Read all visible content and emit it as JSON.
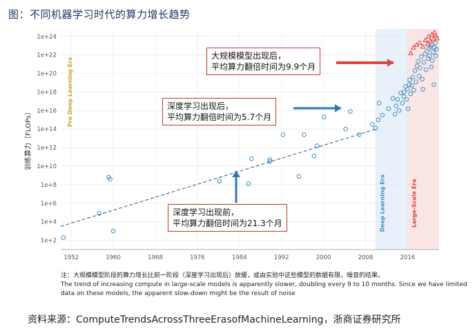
{
  "page": {
    "title_prefix": "图：",
    "title": "不同机器学习时代的算力增长趋势",
    "note_line1": "注：大规模模型阶段的算力增长比前一阶段（深度学习出现后）放缓，或由实验中这些模型的数据有限，噪音的结果。",
    "note_line2": "The trend of increasing compute in large-scale models is apparently slower, doubling every 9 to 10 months. Since we have limited data on these models, the apparent slow-down might be the result of noise",
    "source": "资料来源：ComputeTrendsAcrossThreeErasofMachineLearning，浙商证券研究所"
  },
  "annotations": {
    "large_scale_1": "大规模模型出现后，",
    "large_scale_2": "平均算力翻倍时间为9.9个月",
    "deep_1": "深度学习出现后，",
    "deep_2": "平均算力翻倍时间为5.7个月",
    "pre_1": "深度学习出现前，",
    "pre_2": "平均算力翻倍时间为21.3个月"
  },
  "colors": {
    "pre_era_bg": "#ffffff",
    "deep_era_bg": "#e8f1fa",
    "large_era_bg": "#fbe6e6",
    "circle": "#3b8fc4",
    "triangle": "#d9403a",
    "trend": "#2c4f8f",
    "blue_arrow": "#2e75b6",
    "red_arrow": "#e0453a",
    "era_pre_label": "#c9a227",
    "era_deep_label": "#3b8fc4",
    "era_large_label": "#d9403a"
  },
  "chart_data": {
    "type": "scatter",
    "title": "",
    "xlabel": "",
    "ylabel": "训练算力（FLOPs）",
    "xlim": [
      1950,
      2022
    ],
    "ylim_log10": [
      1,
      24.8
    ],
    "x_ticks": [
      "1952",
      "1960",
      "1968",
      "1976",
      "1984",
      "1992",
      "2000",
      "2008",
      "2016"
    ],
    "y_ticks": [
      "1e+2",
      "1e+4",
      "1e+6",
      "1e+8",
      "1e+10",
      "1e+12",
      "1e+14",
      "1e+16",
      "1e+18",
      "1e+20",
      "1e+22",
      "1e+24"
    ],
    "eras": [
      {
        "name": "Pre Deep Learning Era",
        "start": 1950,
        "end": 2010
      },
      {
        "name": "Deep Learning Era",
        "start": 2010,
        "end": 2016
      },
      {
        "name": "Large-Scale Era",
        "start": 2016,
        "end": 2022
      }
    ],
    "trend_line": {
      "x": [
        1950,
        2010
      ],
      "log10_y": [
        3.5,
        14
      ]
    },
    "series": [
      {
        "marker": "circle",
        "points": [
          [
            1950.5,
            2.3
          ],
          [
            1957.3,
            4.9
          ],
          [
            1959.1,
            8.8
          ],
          [
            1959.4,
            8.6
          ],
          [
            1960,
            3
          ],
          [
            1980.2,
            8.4
          ],
          [
            1985.7,
            8.1
          ],
          [
            1986.3,
            10.8
          ],
          [
            1989.8,
            10.7
          ],
          [
            1989.8,
            10.5
          ],
          [
            1992.3,
            13.4
          ],
          [
            1995.3,
            8.9
          ],
          [
            1996.3,
            13.4
          ],
          [
            1998.2,
            11.1
          ],
          [
            1998.8,
            12.2
          ],
          [
            2000.1,
            15.3
          ],
          [
            2004.2,
            14
          ],
          [
            2005.1,
            15.9
          ],
          [
            2006.8,
            13.4
          ],
          [
            2009.3,
            14.5
          ],
          [
            2009.9,
            14.1
          ],
          [
            2010.4,
            15
          ],
          [
            2010.6,
            16.8
          ],
          [
            2011.2,
            15.5
          ],
          [
            2012.4,
            16.2
          ],
          [
            2013.2,
            17.3
          ],
          [
            2013.6,
            15.6
          ],
          [
            2013.8,
            16.5
          ],
          [
            2014.1,
            17.2
          ],
          [
            2014.4,
            16
          ],
          [
            2014.7,
            17.9
          ],
          [
            2015,
            16.8
          ],
          [
            2015.3,
            18
          ],
          [
            2015.3,
            17.5
          ],
          [
            2015.6,
            18.6
          ],
          [
            2015.8,
            17.2
          ],
          [
            2016,
            18.3
          ],
          [
            2016.1,
            16.2
          ],
          [
            2016.3,
            18.8
          ],
          [
            2016.4,
            19.3
          ],
          [
            2016.6,
            17.8
          ],
          [
            2016.8,
            18.7
          ],
          [
            2017,
            19.6
          ],
          [
            2017.2,
            18.2
          ],
          [
            2017.4,
            20.3
          ],
          [
            2017.6,
            19.1
          ],
          [
            2017.8,
            20.8
          ],
          [
            2018,
            21.3
          ],
          [
            2018.2,
            19.7
          ],
          [
            2018.4,
            20.6
          ],
          [
            2018.6,
            21.8
          ],
          [
            2018.8,
            19.4
          ],
          [
            2018.9,
            18.3
          ],
          [
            2019.1,
            21.2
          ],
          [
            2019.3,
            22.1
          ],
          [
            2019.5,
            20.4
          ],
          [
            2019.7,
            22.4
          ],
          [
            2019.9,
            21.6
          ],
          [
            2020.1,
            22.7
          ],
          [
            2020.2,
            21.9
          ],
          [
            2020.4,
            22.9
          ],
          [
            2020.5,
            20.7
          ],
          [
            2020.6,
            23.1
          ],
          [
            2020.7,
            21.4
          ],
          [
            2020.9,
            22.3
          ],
          [
            2021,
            18.8
          ],
          [
            2021.1,
            22.8
          ],
          [
            2021.3,
            23.3
          ],
          [
            2021.4,
            21.9
          ],
          [
            2021.5,
            22.6
          ]
        ]
      },
      {
        "marker": "triangle",
        "points": [
          [
            2016.6,
            22.2
          ],
          [
            2017.1,
            22.8
          ],
          [
            2017.7,
            23.1
          ],
          [
            2018.3,
            23.3
          ],
          [
            2018.9,
            22.9
          ],
          [
            2019.4,
            23.6
          ],
          [
            2019.8,
            23.2
          ],
          [
            2020,
            24
          ],
          [
            2020.3,
            23.5
          ],
          [
            2020.6,
            24.2
          ],
          [
            2020.9,
            23.7
          ],
          [
            2021.1,
            24.4
          ],
          [
            2021.4,
            24.1
          ],
          [
            2021.6,
            23.8
          ]
        ]
      }
    ]
  }
}
